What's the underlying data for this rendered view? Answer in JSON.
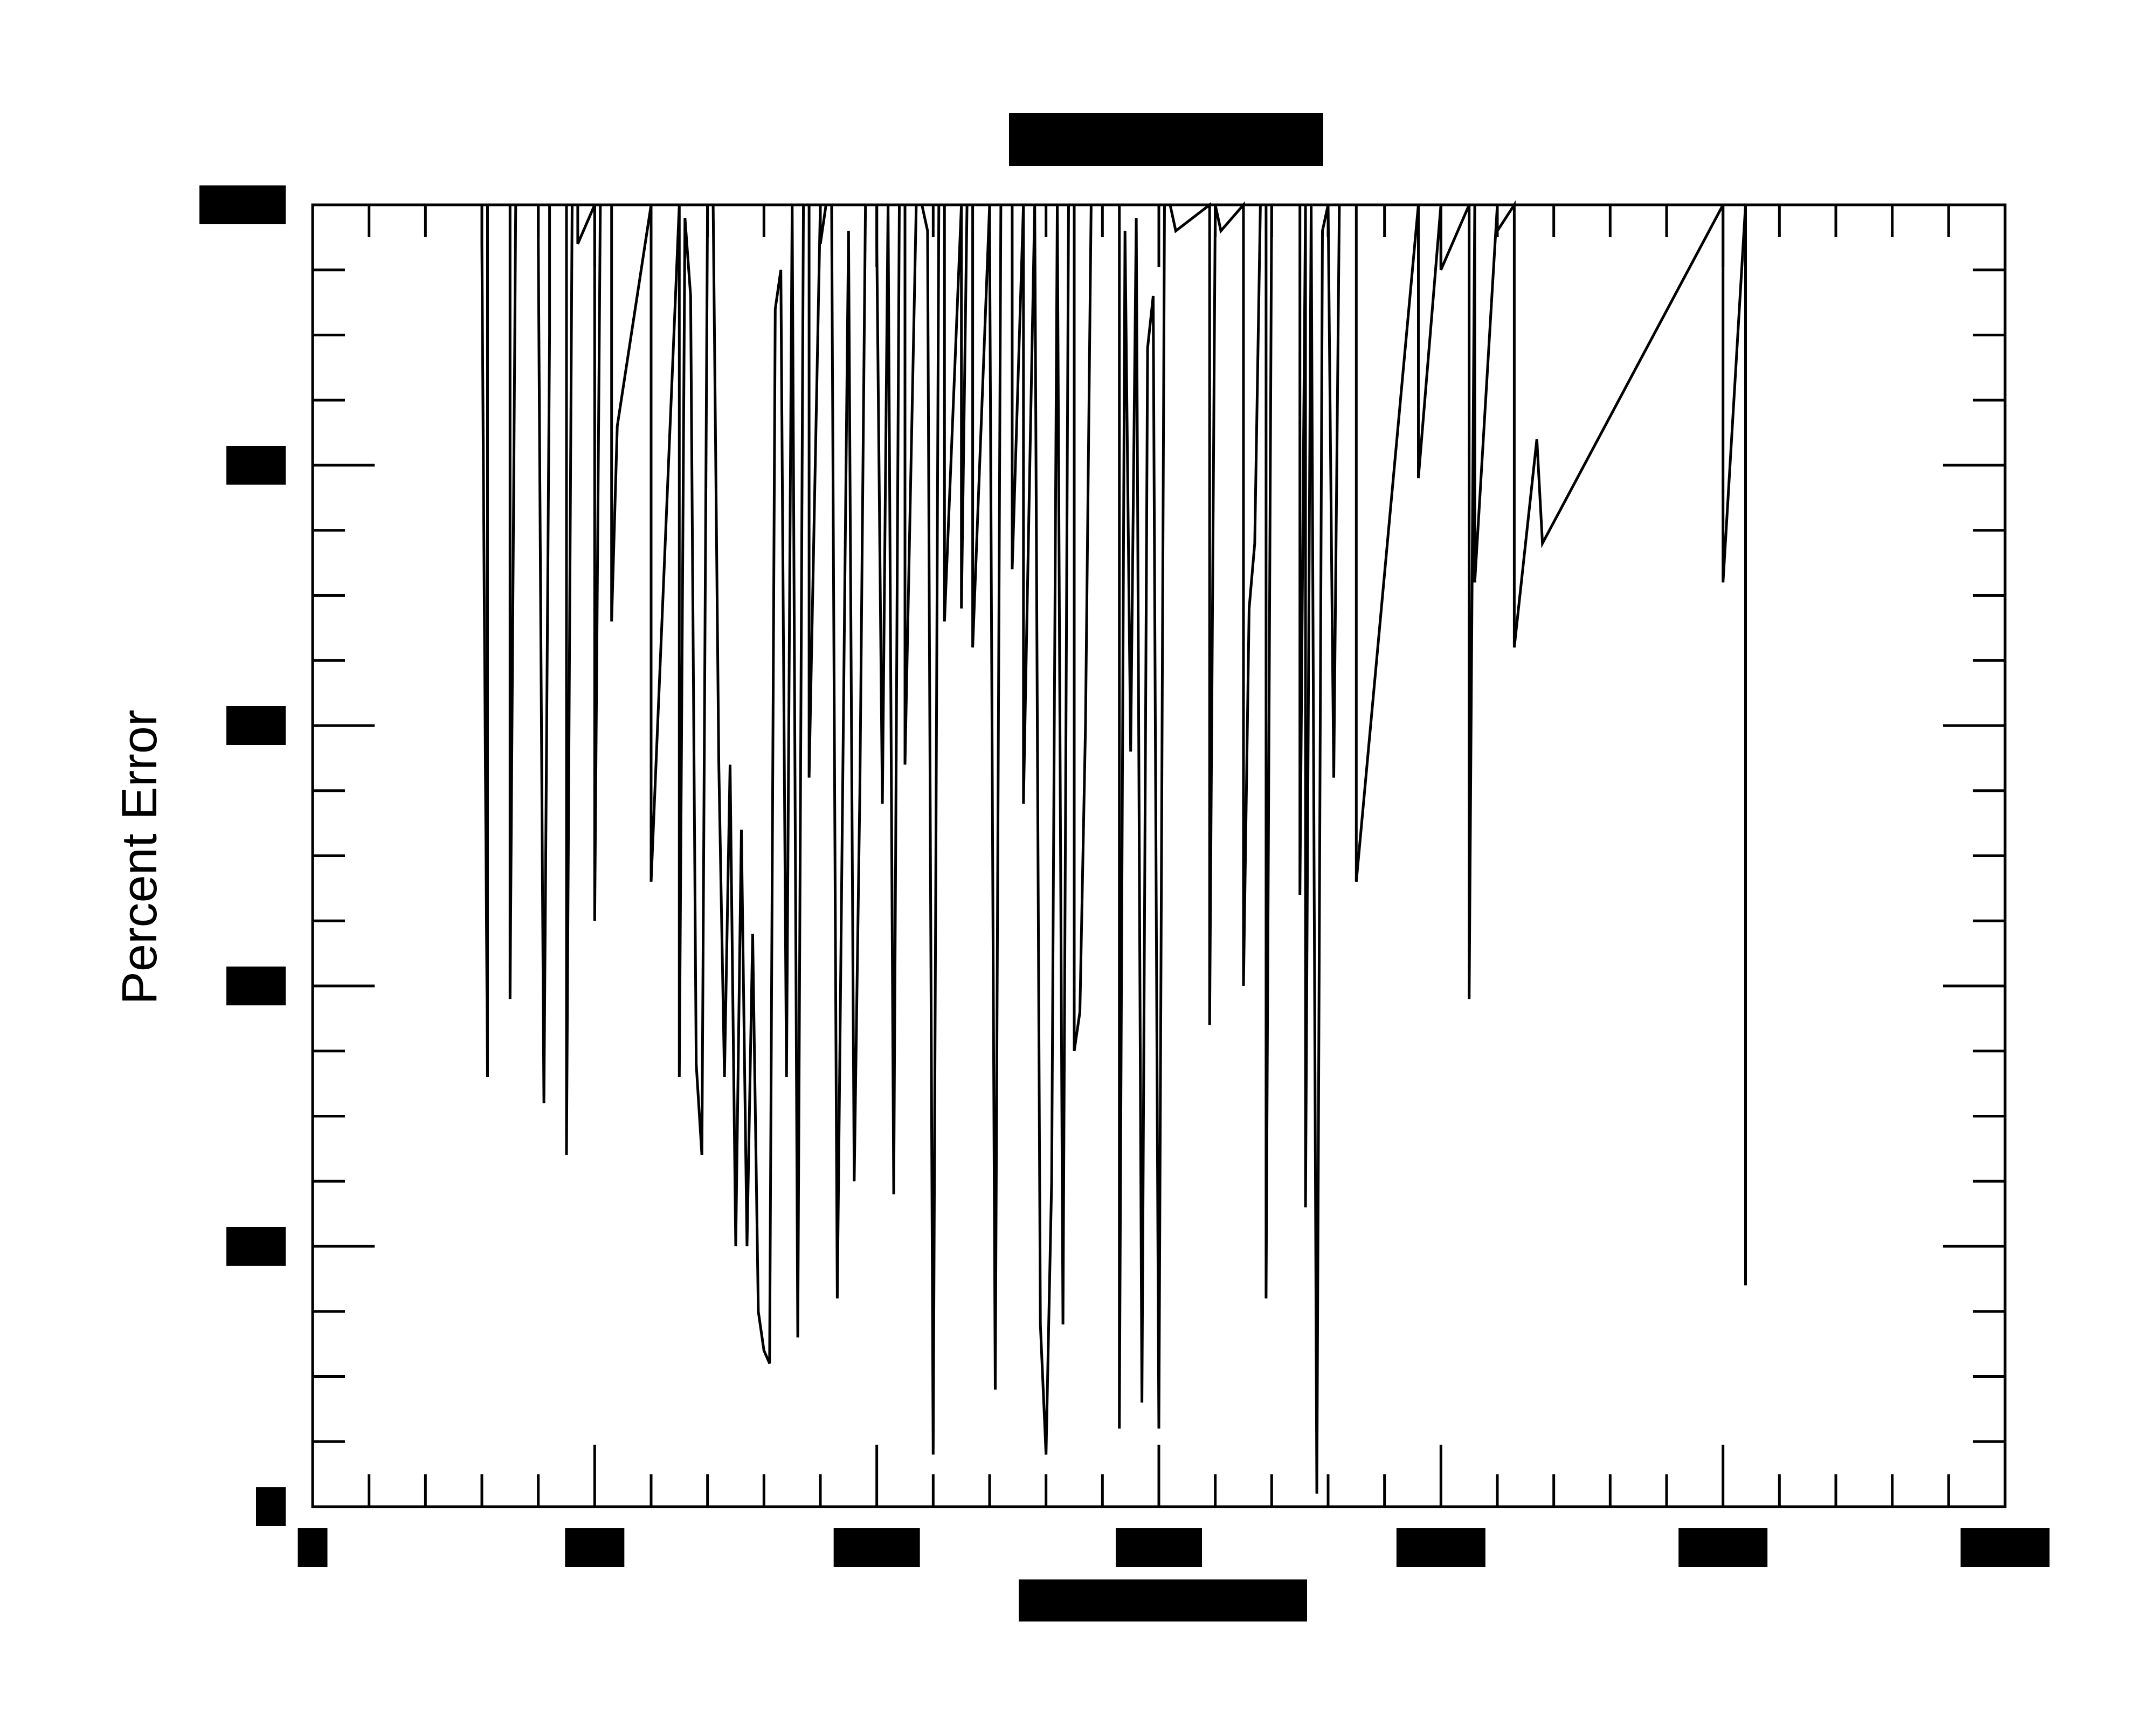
{
  "chart_data": {
    "type": "line",
    "title": "",
    "xlabel": "",
    "ylabel": "Percent Error",
    "title_redacted": true,
    "xlabel_redacted": true,
    "tick_labels_redacted": true,
    "xlim": [
      0,
      300
    ],
    "ylim": [
      0,
      100
    ],
    "x_major_ticks": [
      0,
      50,
      100,
      150,
      200,
      250,
      300
    ],
    "y_major_ticks": [
      0,
      20,
      40,
      60,
      80,
      100
    ],
    "grid": false,
    "legend": "none",
    "line_color": "#000000",
    "series": [
      {
        "values": [
          [
            30,
            100
          ],
          [
            30,
            97
          ],
          [
            31,
            33
          ],
          [
            31,
            100
          ],
          [
            35,
            100
          ],
          [
            35,
            39
          ],
          [
            36,
            100
          ],
          [
            40,
            100
          ],
          [
            40,
            97
          ],
          [
            41,
            31
          ],
          [
            42,
            90
          ],
          [
            42,
            100
          ],
          [
            45,
            100
          ],
          [
            45,
            27
          ],
          [
            46,
            100
          ],
          [
            47,
            100
          ],
          [
            47,
            97
          ],
          [
            50,
            100
          ],
          [
            50,
            45
          ],
          [
            51,
            100
          ],
          [
            53,
            100
          ],
          [
            53,
            68
          ],
          [
            54,
            83
          ],
          [
            60,
            100
          ],
          [
            60,
            48
          ],
          [
            65,
            100
          ],
          [
            65,
            33
          ],
          [
            66,
            99
          ],
          [
            67,
            93
          ],
          [
            68,
            34
          ],
          [
            69,
            27
          ],
          [
            70,
            100
          ],
          [
            71,
            100
          ],
          [
            72,
            57
          ],
          [
            73,
            33
          ],
          [
            74,
            57
          ],
          [
            75,
            20
          ],
          [
            76,
            52
          ],
          [
            77,
            20
          ],
          [
            78,
            44
          ],
          [
            79,
            15
          ],
          [
            80,
            12
          ],
          [
            81,
            11
          ],
          [
            82,
            92
          ],
          [
            83,
            95
          ],
          [
            84,
            33
          ],
          [
            85,
            100
          ],
          [
            86,
            13
          ],
          [
            87,
            100
          ],
          [
            88,
            100
          ],
          [
            88,
            56
          ],
          [
            90,
            100
          ],
          [
            90,
            97
          ],
          [
            91,
            100
          ],
          [
            92,
            100
          ],
          [
            93,
            16
          ],
          [
            95,
            98
          ],
          [
            96,
            25
          ],
          [
            97,
            55
          ],
          [
            98,
            100
          ],
          [
            100,
            100
          ],
          [
            100,
            97
          ],
          [
            101,
            54
          ],
          [
            102,
            100
          ],
          [
            103,
            24
          ],
          [
            104,
            100
          ],
          [
            105,
            100
          ],
          [
            105,
            57
          ],
          [
            107,
            100
          ],
          [
            108,
            100
          ],
          [
            109,
            98
          ],
          [
            110,
            4
          ],
          [
            111,
            100
          ],
          [
            112,
            100
          ],
          [
            112,
            68
          ],
          [
            115,
            100
          ],
          [
            115,
            69
          ],
          [
            116,
            100
          ],
          [
            117,
            100
          ],
          [
            117,
            66
          ],
          [
            120,
            100
          ],
          [
            120,
            98
          ],
          [
            121,
            9
          ],
          [
            122,
            100
          ],
          [
            124,
            100
          ],
          [
            124,
            72
          ],
          [
            126,
            100
          ],
          [
            126,
            54
          ],
          [
            128,
            100
          ],
          [
            129,
            14
          ],
          [
            130,
            4
          ],
          [
            131,
            25
          ],
          [
            132,
            100
          ],
          [
            133,
            14
          ],
          [
            134,
            100
          ],
          [
            135,
            100
          ],
          [
            135,
            35
          ],
          [
            136,
            38
          ],
          [
            137,
            60
          ],
          [
            138,
            100
          ],
          [
            143,
            100
          ],
          [
            143,
            6
          ],
          [
            144,
            98
          ],
          [
            145,
            58
          ],
          [
            146,
            99
          ],
          [
            147,
            8
          ],
          [
            148,
            89
          ],
          [
            149,
            93
          ],
          [
            150,
            6
          ],
          [
            151,
            100
          ],
          [
            152,
            100
          ],
          [
            153,
            98
          ],
          [
            159,
            100
          ],
          [
            159,
            37
          ],
          [
            160,
            100
          ],
          [
            161,
            98
          ],
          [
            165,
            100
          ],
          [
            165,
            40
          ],
          [
            166,
            69
          ],
          [
            167,
            74
          ],
          [
            168,
            100
          ],
          [
            169,
            100
          ],
          [
            169,
            16
          ],
          [
            170,
            100
          ],
          [
            175,
            100
          ],
          [
            175,
            47
          ],
          [
            176,
            100
          ],
          [
            176,
            23
          ],
          [
            177,
            100
          ],
          [
            178,
            1
          ],
          [
            179,
            98
          ],
          [
            180,
            100
          ],
          [
            181,
            56
          ],
          [
            182,
            100
          ],
          [
            185,
            100
          ],
          [
            185,
            48
          ],
          [
            196,
            100
          ],
          [
            196,
            79
          ],
          [
            200,
            100
          ],
          [
            200,
            95
          ],
          [
            205,
            100
          ],
          [
            205,
            39
          ],
          [
            206,
            100
          ],
          [
            206,
            71
          ],
          [
            210,
            100
          ],
          [
            210,
            98
          ],
          [
            213,
            100
          ],
          [
            213,
            66
          ],
          [
            217,
            82
          ],
          [
            218,
            74
          ],
          [
            250,
            100
          ],
          [
            250,
            71
          ],
          [
            254,
            100
          ],
          [
            254,
            17
          ]
        ]
      }
    ]
  }
}
